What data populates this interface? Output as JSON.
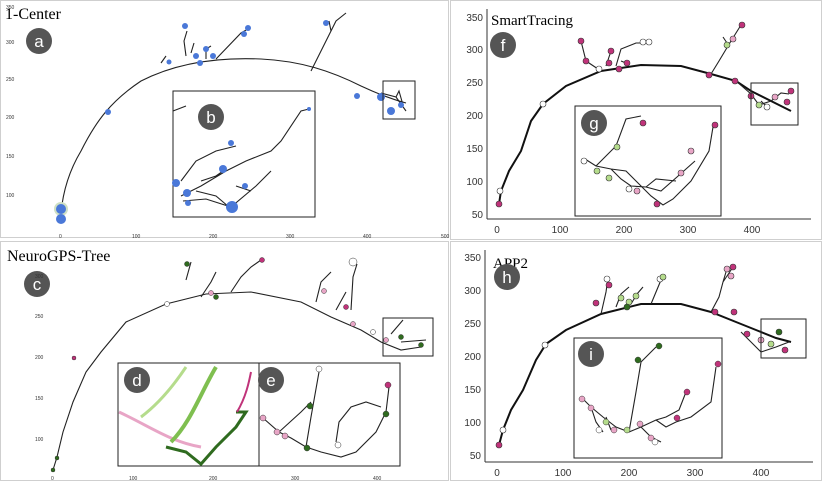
{
  "panels": {
    "p1": {
      "title": "1-Center",
      "label_main": "a",
      "label_inset": "b",
      "x_ticks": [
        "0",
        "100",
        "200",
        "300",
        "400",
        "500"
      ],
      "y_ticks": [
        "350",
        "300",
        "250",
        "200",
        "150",
        "100"
      ]
    },
    "p2": {
      "title": "SmartTracing",
      "label_main": "f",
      "label_inset": "g",
      "x_ticks": [
        "0",
        "100",
        "200",
        "300",
        "400"
      ],
      "y_ticks": [
        "350",
        "300",
        "250",
        "200",
        "150",
        "100",
        "50"
      ]
    },
    "p3": {
      "title": "NeuroGPS-Tree",
      "label_main": "c",
      "label_inset_left": "d",
      "label_inset_right": "e",
      "x_ticks": [
        "0",
        "100",
        "200",
        "300",
        "400"
      ],
      "y_ticks": [
        "300",
        "250",
        "200",
        "150",
        "100"
      ]
    },
    "p4": {
      "title": "APP2",
      "label_main": "h",
      "label_inset": "i",
      "x_ticks": [
        "0",
        "100",
        "200",
        "300",
        "400"
      ],
      "y_ticks": [
        "350",
        "300",
        "250",
        "200",
        "150",
        "100",
        "50"
      ]
    }
  },
  "colors": {
    "blue": "#4a78d8",
    "magenta": "#c0337a",
    "pink": "#e8a5c6",
    "light_green": "#b5dc8c",
    "dark_green": "#2f6b1f",
    "badge": "#555555"
  }
}
